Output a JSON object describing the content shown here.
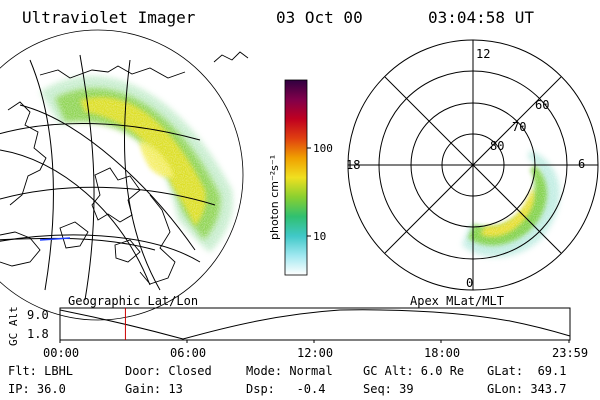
{
  "header": {
    "instrument": "Ultraviolet Imager",
    "date": "03 Oct 00",
    "time": "03:04:58 UT"
  },
  "geo_panel": {
    "label": "Geographic Lat/Lon"
  },
  "polar_panel": {
    "label": "Apex MLat/MLT",
    "mlt_labels": [
      "12",
      "18",
      "6",
      "0"
    ],
    "lat_labels": [
      "60",
      "70",
      "80"
    ]
  },
  "colorbar": {
    "unit_label": "photon cm⁻²s⁻¹",
    "tick_labels": [
      "100",
      "10"
    ],
    "scale": "log",
    "colors": [
      "#ffffff",
      "#a0e8f0",
      "#40c8c8",
      "#30c070",
      "#8ad030",
      "#f0e020",
      "#f0a000",
      "#e04010",
      "#c00020",
      "#80004a",
      "#300040"
    ]
  },
  "timeline": {
    "axis_label": "GC Alt",
    "y_ticks": [
      "9.0",
      "1.8"
    ],
    "x_ticks": [
      "00:00",
      "06:00",
      "12:00",
      "18:00",
      "23:59"
    ],
    "marker_time": "03:04:58"
  },
  "info": {
    "row1": {
      "flt": "Flt: LBHL",
      "door": "Door: Closed",
      "mode": "Mode: Normal",
      "gcalt": "GC Alt: 6.0 Re",
      "glat": "GLat:  69.1"
    },
    "row2": {
      "ip": "IP: 36.0",
      "gain": "Gain: 13",
      "dsp": "Dsp:   -0.4",
      "seq": "Seq: 39",
      "glon": "GLon: 343.7"
    }
  },
  "style": {
    "marker_color": "#cc0000"
  }
}
